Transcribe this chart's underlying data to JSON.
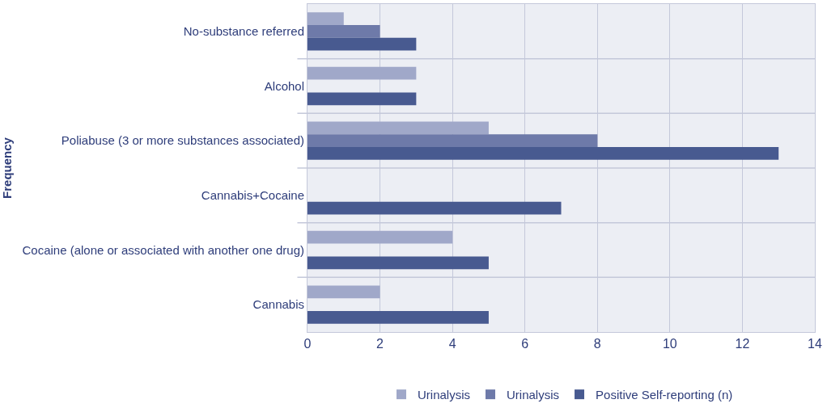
{
  "chart_data": {
    "type": "bar",
    "orientation": "horizontal",
    "ylabel": "Frequency",
    "categories": [
      "No-substance referred",
      "Alcohol",
      "Poliabuse (3 or more substances associated)",
      "Cannabis+Cocaine",
      "Cocaine (alone or associated with another one drug)",
      "Cannabis"
    ],
    "series": [
      {
        "name": "Urinalysis",
        "color": "#a0a8c9",
        "values": [
          1,
          3,
          5,
          null,
          4,
          2
        ]
      },
      {
        "name": "Urinalysis",
        "color": "#6e7aa9",
        "values": [
          2,
          null,
          8,
          null,
          null,
          null
        ]
      },
      {
        "name": "Positive Self-reporting (n)",
        "color": "#485a90",
        "values": [
          3,
          3,
          13,
          7,
          5,
          5
        ]
      }
    ],
    "xlim": [
      0,
      14
    ],
    "xticks": [
      0,
      2,
      4,
      6,
      8,
      10,
      12,
      14
    ],
    "grid": true,
    "legend": "bottom"
  }
}
